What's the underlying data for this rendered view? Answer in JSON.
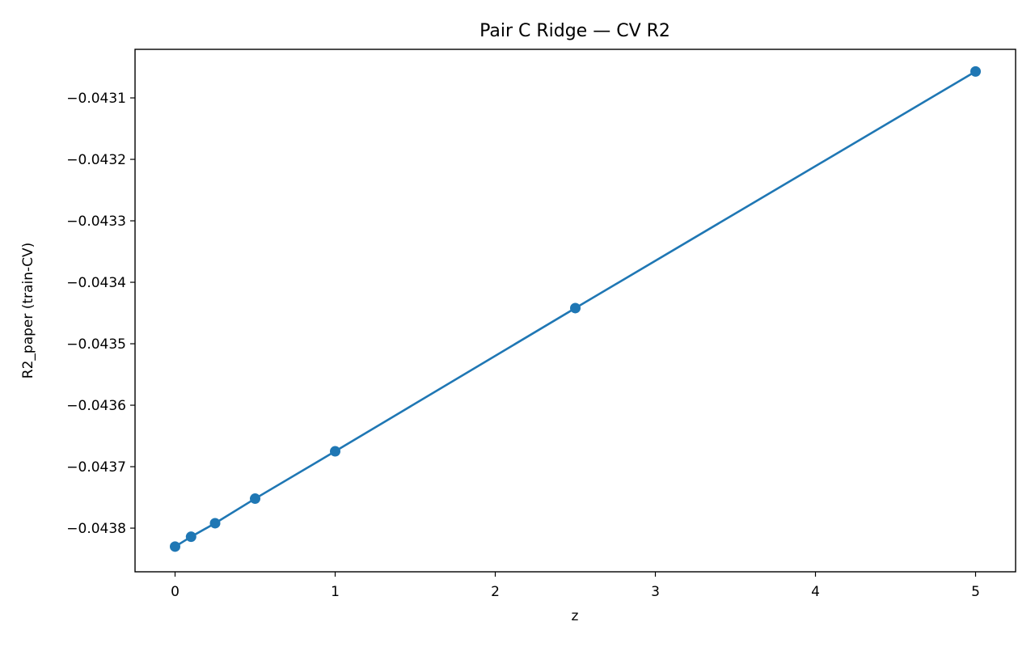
{
  "chart_data": {
    "type": "line",
    "title": "Pair C Ridge — CV R2",
    "xlabel": "z",
    "ylabel": "R2_paper (train-CV)",
    "xlim": [
      -0.25,
      5.25
    ],
    "ylim": [
      -0.043871,
      -0.043021
    ],
    "x_ticks": [
      0,
      1,
      2,
      3,
      4,
      5
    ],
    "y_ticks": [
      -0.0431,
      -0.0432,
      -0.0433,
      -0.0434,
      -0.0435,
      -0.0436,
      -0.0437,
      -0.0438
    ],
    "y_tick_labels": [
      "−0.0431",
      "−0.0432",
      "−0.0433",
      "−0.0434",
      "−0.0435",
      "−0.0436",
      "−0.0437",
      "−0.0438"
    ],
    "grid": false,
    "color": "#1f77b4",
    "series": [
      {
        "x": [
          0,
          0.1,
          0.25,
          0.5,
          1,
          2.5,
          5
        ],
        "y": [
          -0.04383,
          -0.043814,
          -0.043792,
          -0.043752,
          -0.043675,
          -0.043442,
          -0.043057
        ]
      }
    ]
  }
}
